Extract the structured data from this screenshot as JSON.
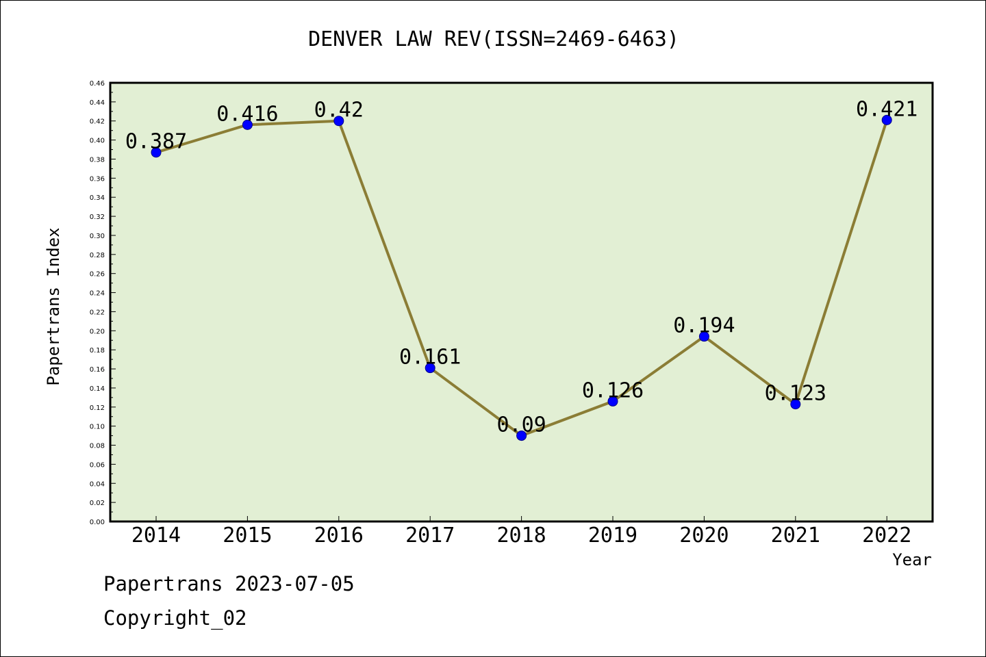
{
  "chart_data": {
    "type": "line",
    "title": "DENVER LAW REV(ISSN=2469-6463)",
    "xlabel": "Year",
    "ylabel": "Papertrans Index",
    "categories": [
      "2014",
      "2015",
      "2016",
      "2017",
      "2018",
      "2019",
      "2020",
      "2021",
      "2022"
    ],
    "series": [
      {
        "values": [
          0.387,
          0.416,
          0.42,
          0.161,
          0.09,
          0.126,
          0.194,
          0.123,
          0.421
        ],
        "labels": [
          "0.387",
          "0.416",
          "0.42",
          "0.161",
          "0.09",
          "0.126",
          "0.194",
          "0.123",
          "0.421"
        ]
      }
    ],
    "ylim": [
      0,
      0.46
    ],
    "ytick_step": 0.02,
    "grid": false,
    "colors": {
      "plot_background": "#e2efd4",
      "line": "#8b7d35",
      "marker": "#0000ff"
    }
  },
  "footer": {
    "line1": "Papertrans 2023-07-05",
    "line2": "Copyright_02"
  }
}
